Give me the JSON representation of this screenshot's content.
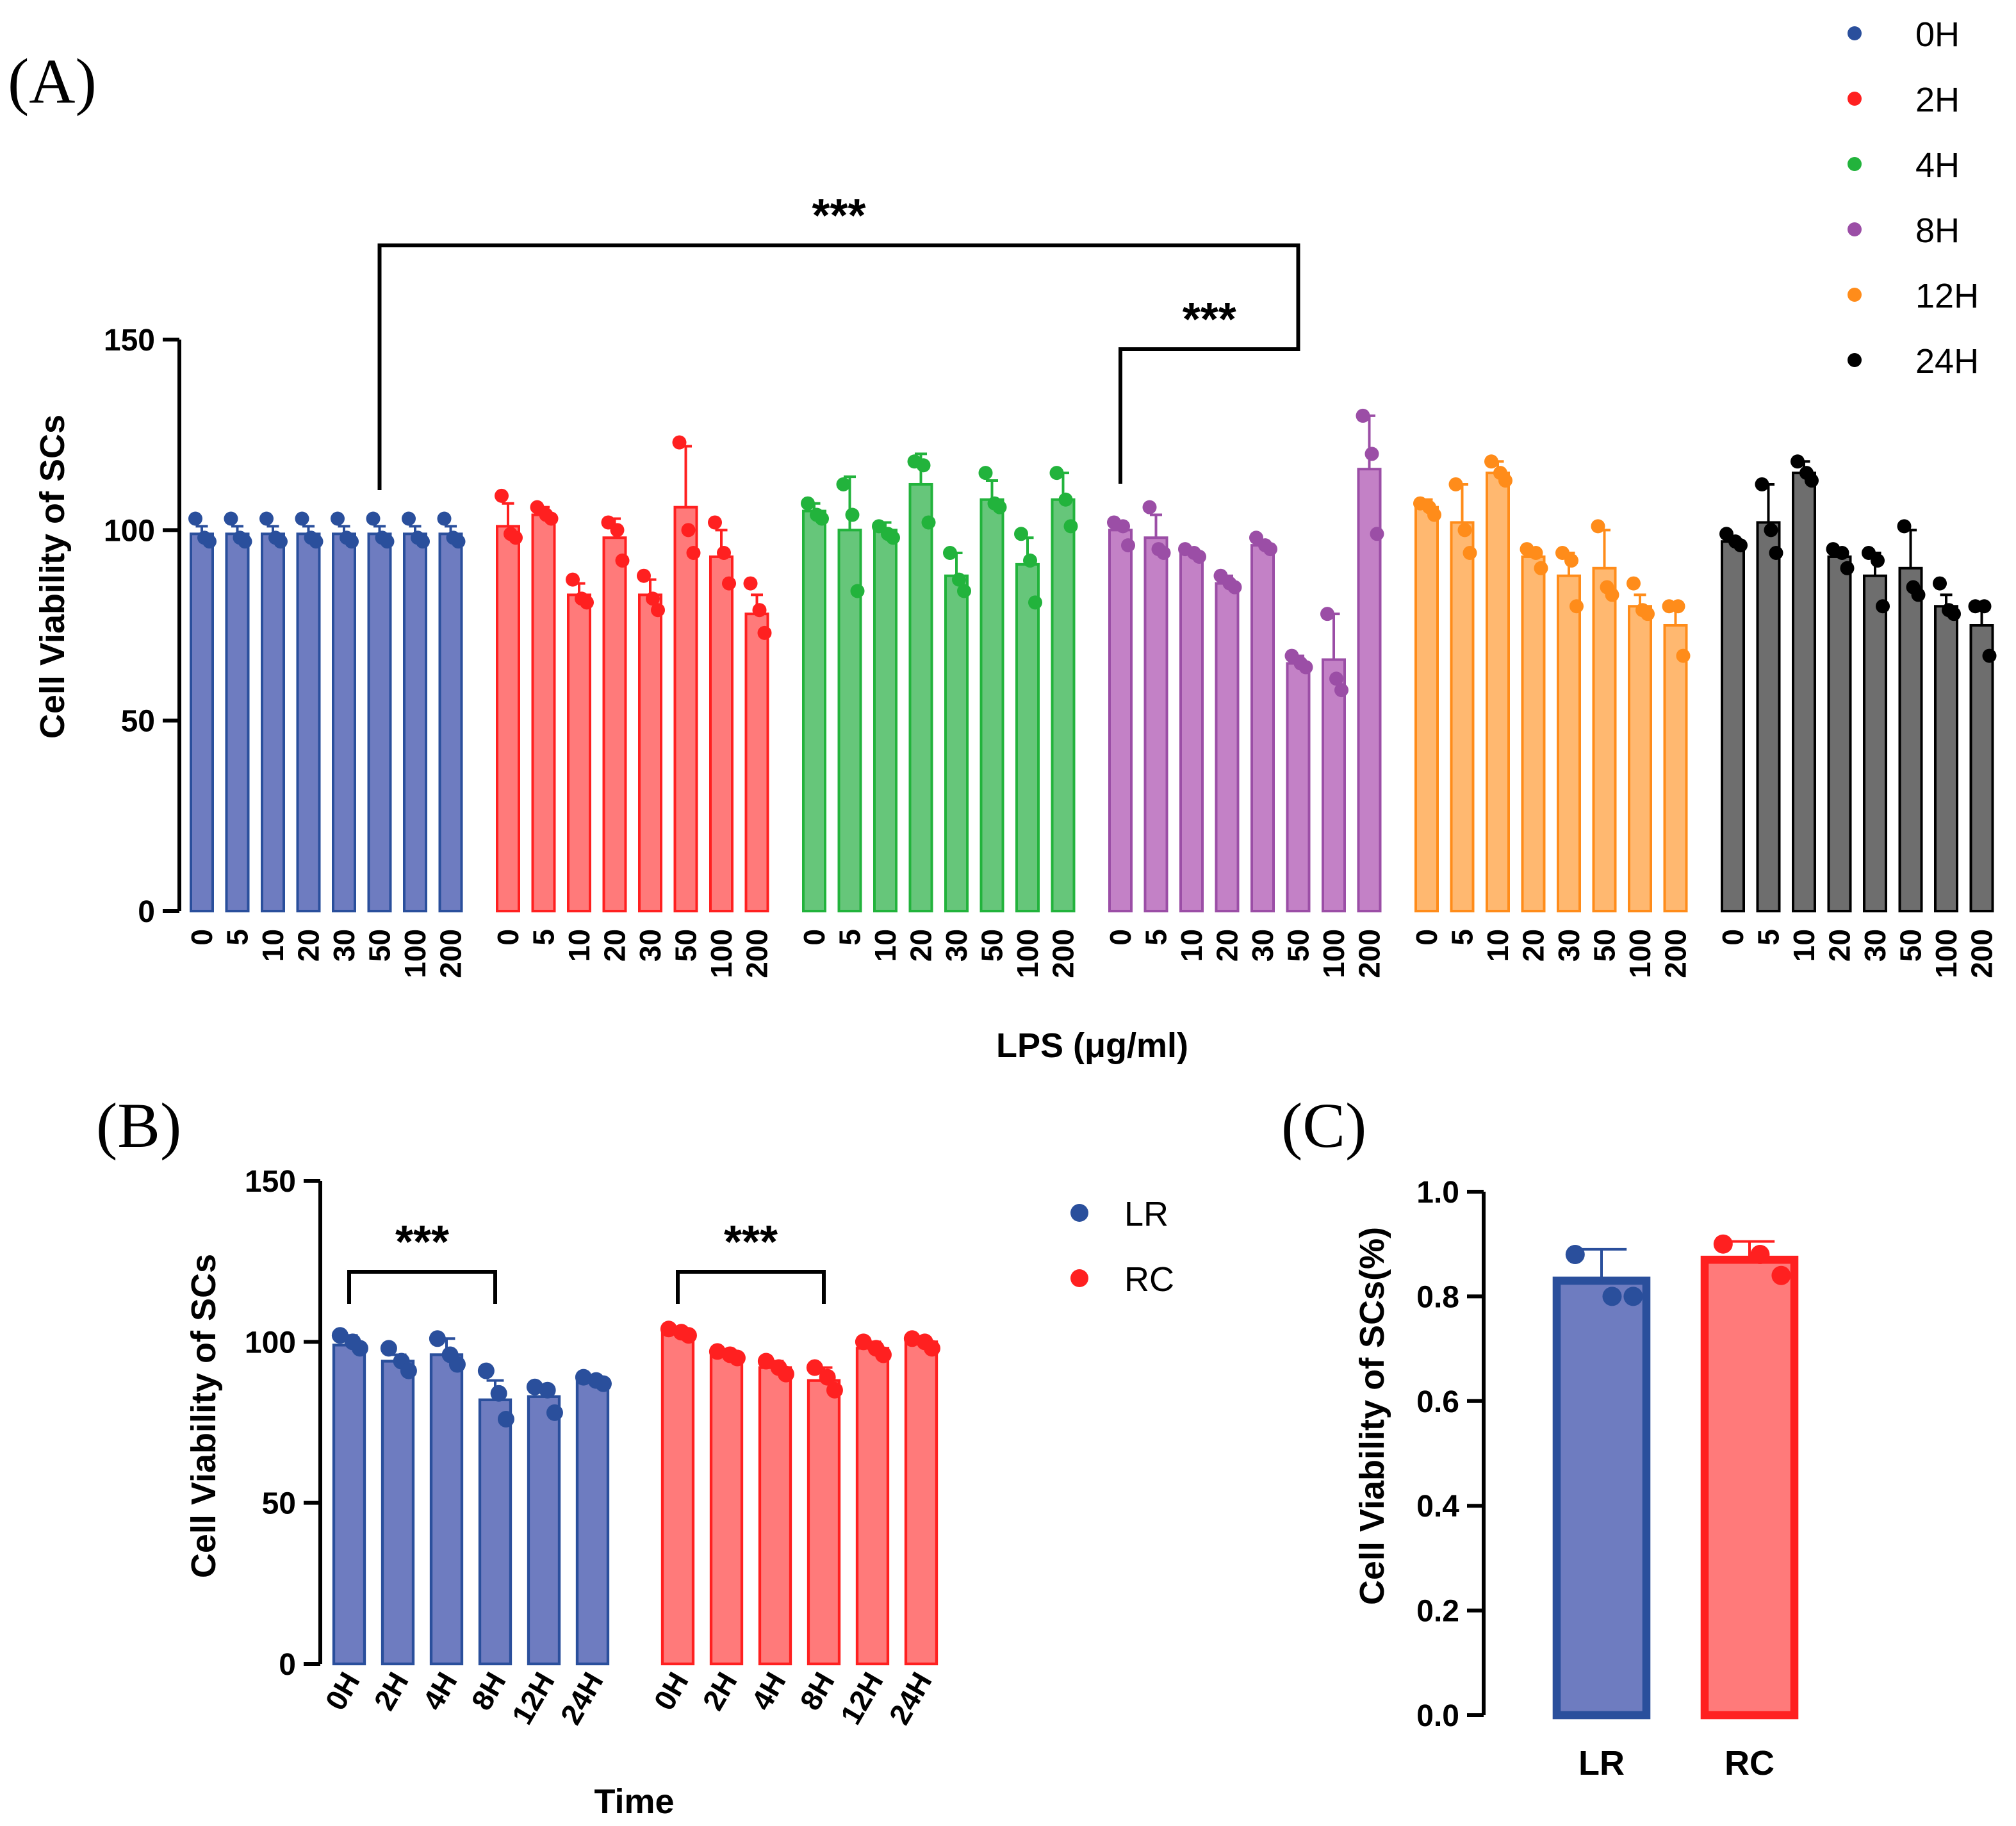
{
  "chart_data": [
    {
      "panel": "(A)",
      "type": "bar",
      "ylabel": "Cell Viability of SCs",
      "xlabel": "LPS (μg/ml)",
      "ylim": [
        0,
        150
      ],
      "yticks": [
        0,
        50,
        100,
        150
      ],
      "categories": [
        "0",
        "5",
        "10",
        "20",
        "30",
        "50",
        "100",
        "200"
      ],
      "legend_position": "top-right",
      "series": [
        {
          "name": "0H",
          "color": "#2A4F9C",
          "fill": "#6E7CC0",
          "values": [
            99,
            99,
            99,
            99,
            99,
            99,
            99,
            99
          ],
          "errors": [
            2,
            2,
            2,
            2,
            2,
            2,
            2,
            2
          ],
          "points": [
            [
              103,
              98,
              97
            ],
            [
              103,
              98,
              97
            ],
            [
              103,
              98,
              97
            ],
            [
              103,
              98,
              97
            ],
            [
              103,
              98,
              97
            ],
            [
              103,
              98,
              97
            ],
            [
              103,
              98,
              97
            ],
            [
              103,
              98,
              97
            ]
          ]
        },
        {
          "name": "2H",
          "color": "#FF2020",
          "fill": "#FF7A7A",
          "values": [
            101,
            104,
            83,
            98,
            83,
            106,
            93,
            78
          ],
          "errors": [
            6,
            2,
            3,
            5,
            4,
            16,
            7,
            5
          ],
          "points": [
            [
              109,
              99,
              98
            ],
            [
              106,
              104,
              103
            ],
            [
              87,
              82,
              81
            ],
            [
              102,
              100,
              92
            ],
            [
              88,
              82,
              79
            ],
            [
              123,
              100,
              94
            ],
            [
              102,
              94,
              86
            ],
            [
              86,
              79,
              73
            ]
          ]
        },
        {
          "name": "4H",
          "color": "#22B33C",
          "fill": "#66C67A",
          "values": [
            105,
            100,
            100,
            112,
            88,
            108,
            91,
            108
          ],
          "errors": [
            2,
            14,
            2,
            8,
            6,
            5,
            7,
            7
          ],
          "points": [
            [
              107,
              104,
              103
            ],
            [
              112,
              104,
              84
            ],
            [
              101,
              99,
              98
            ],
            [
              118,
              117,
              102
            ],
            [
              94,
              87,
              84
            ],
            [
              115,
              107,
              106
            ],
            [
              99,
              92,
              81
            ],
            [
              115,
              108,
              101
            ]
          ]
        },
        {
          "name": "8H",
          "color": "#9B4EA6",
          "fill": "#C381C6",
          "values": [
            100,
            98,
            94,
            86,
            96,
            65,
            66,
            116
          ],
          "errors": [
            2,
            6,
            1,
            2,
            1,
            2,
            12,
            14
          ],
          "points": [
            [
              102,
              101,
              96
            ],
            [
              106,
              95,
              94
            ],
            [
              95,
              94,
              93
            ],
            [
              88,
              86,
              85
            ],
            [
              98,
              96,
              95
            ],
            [
              67,
              65,
              64
            ],
            [
              78,
              61,
              58
            ],
            [
              130,
              120,
              99
            ]
          ]
        },
        {
          "name": "12H",
          "color": "#FF8C1A",
          "fill": "#FFB870",
          "values": [
            106,
            102,
            115,
            93,
            88,
            90,
            80,
            75
          ],
          "errors": [
            2,
            10,
            3,
            2,
            6,
            10,
            3,
            6
          ],
          "points": [
            [
              107,
              106,
              104
            ],
            [
              112,
              100,
              94
            ],
            [
              118,
              115,
              113
            ],
            [
              95,
              94,
              90
            ],
            [
              94,
              92,
              80
            ],
            [
              101,
              85,
              83
            ],
            [
              86,
              79,
              78
            ],
            [
              80,
              80,
              67
            ]
          ]
        },
        {
          "name": "24H",
          "color": "#000000",
          "fill": "#6E6E6E",
          "values": [
            97,
            102,
            115,
            93,
            88,
            90,
            80,
            75
          ],
          "errors": [
            1,
            10,
            3,
            2,
            6,
            10,
            3,
            6
          ],
          "points": [
            [
              99,
              97,
              96
            ],
            [
              112,
              100,
              94
            ],
            [
              118,
              115,
              113
            ],
            [
              95,
              94,
              90
            ],
            [
              94,
              92,
              80
            ],
            [
              101,
              85,
              83
            ],
            [
              86,
              79,
              78
            ],
            [
              80,
              80,
              67
            ]
          ]
        }
      ],
      "annotations": [
        {
          "text": "***",
          "from": {
            "series": "0H",
            "category": "50"
          },
          "to": {
            "series": "8H",
            "category": "50"
          }
        },
        {
          "text": "***",
          "from": {
            "series": "8H",
            "category": "0"
          },
          "to": {
            "series": "8H",
            "category": "50"
          }
        }
      ]
    },
    {
      "panel": "(B)",
      "type": "bar",
      "ylabel": "Cell Viability of SCs",
      "xlabel": "Time",
      "ylim": [
        0,
        150
      ],
      "yticks": [
        0,
        50,
        100,
        150
      ],
      "categories": [
        "0H",
        "2H",
        "4H",
        "8H",
        "12H",
        "24H"
      ],
      "legend_position": "top-right",
      "series": [
        {
          "name": "LR",
          "color": "#2A4F9C",
          "fill": "#6E7CC0",
          "values": [
            99,
            94,
            96,
            82,
            83,
            88
          ],
          "errors": [
            3,
            2,
            5,
            6,
            3,
            1
          ],
          "points": [
            [
              102,
              100,
              98
            ],
            [
              98,
              94,
              91
            ],
            [
              101,
              96,
              93
            ],
            [
              91,
              84,
              76
            ],
            [
              86,
              85,
              78
            ],
            [
              89,
              88,
              87
            ]
          ]
        },
        {
          "name": "RC",
          "color": "#FF2020",
          "fill": "#FF7A7A",
          "values": [
            103,
            96,
            92,
            88,
            98,
            100
          ],
          "errors": [
            1,
            1,
            2,
            4,
            2,
            1
          ],
          "points": [
            [
              104,
              103,
              102
            ],
            [
              97,
              96,
              95
            ],
            [
              94,
              92,
              90
            ],
            [
              92,
              89,
              85
            ],
            [
              100,
              98,
              96
            ],
            [
              101,
              100,
              98
            ]
          ]
        }
      ],
      "annotations": [
        {
          "text": "***",
          "from": {
            "series": "LR",
            "category": "0H"
          },
          "to": {
            "series": "LR",
            "category": "8H"
          }
        },
        {
          "text": "***",
          "from": {
            "series": "RC",
            "category": "0H"
          },
          "to": {
            "series": "RC",
            "category": "8H"
          }
        }
      ]
    },
    {
      "panel": "(C)",
      "type": "bar",
      "ylabel": "Cell Viability of SCs(%)",
      "xlabel": "",
      "ylim": [
        0,
        1.0
      ],
      "yticks": [
        "0.0",
        "0.2",
        "0.4",
        "0.6",
        "0.8",
        "1.0"
      ],
      "categories": [
        "LR",
        "RC"
      ],
      "series": [
        {
          "name": "Cell Viability",
          "values": [
            0.83,
            0.87
          ],
          "errors": [
            0.06,
            0.035
          ],
          "colors": [
            "#2A4F9C",
            "#FF2020"
          ],
          "fills": [
            "#6E7CC0",
            "#FF7A7A"
          ],
          "points": [
            [
              0.88,
              0.8,
              0.8
            ],
            [
              0.9,
              0.88,
              0.84
            ]
          ]
        }
      ]
    }
  ]
}
